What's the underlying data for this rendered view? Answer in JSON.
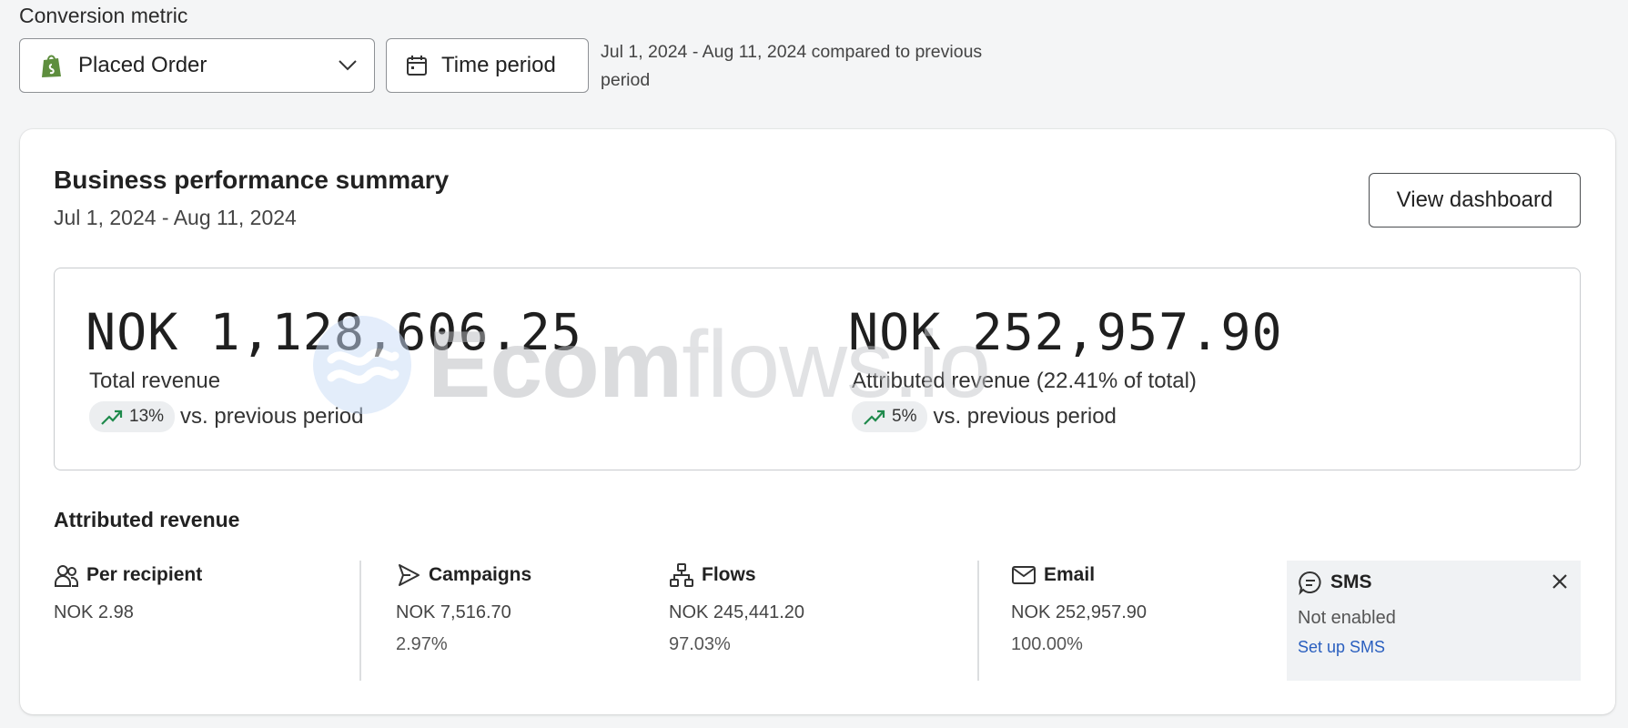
{
  "header": {
    "metric_label": "Conversion metric",
    "metric_select_value": "Placed Order",
    "time_button_label": "Time period",
    "period_text": "Jul 1, 2024 - Aug 11, 2024 compared to previous period"
  },
  "card": {
    "title": "Business performance summary",
    "date_range": "Jul 1, 2024 - Aug 11, 2024",
    "view_dashboard_label": "View dashboard"
  },
  "summary": {
    "total": {
      "value": "NOK 1,128,606.25",
      "label": "Total revenue",
      "change": "13%",
      "vs": "vs. previous period"
    },
    "attributed": {
      "value": "NOK 252,957.90",
      "label": "Attributed revenue (22.41% of total)",
      "change": "5%",
      "vs": "vs. previous period"
    }
  },
  "watermark": {
    "text_bold": "Ecom",
    "text_light": "flows.io"
  },
  "attributed_revenue": {
    "title": "Attributed revenue",
    "per_recipient": {
      "label": "Per recipient",
      "value": "NOK 2.98"
    },
    "campaigns": {
      "label": "Campaigns",
      "value": "NOK 7,516.70",
      "pct": "2.97%"
    },
    "flows": {
      "label": "Flows",
      "value": "NOK 245,441.20",
      "pct": "97.03%"
    },
    "email": {
      "label": "Email",
      "value": "NOK 252,957.90",
      "pct": "100.00%"
    },
    "sms": {
      "label": "SMS",
      "status": "Not enabled",
      "link": "Set up SMS"
    }
  },
  "colors": {
    "trend_up": "#1f8a4c",
    "link": "#2a5fbf",
    "shopify_green": "#5e8e3e"
  },
  "icons": [
    "shopify-icon",
    "chevron-down-icon",
    "calendar-icon",
    "trend-up-icon",
    "people-icon",
    "send-icon",
    "flows-icon",
    "mail-icon",
    "chat-icon",
    "close-icon"
  ]
}
